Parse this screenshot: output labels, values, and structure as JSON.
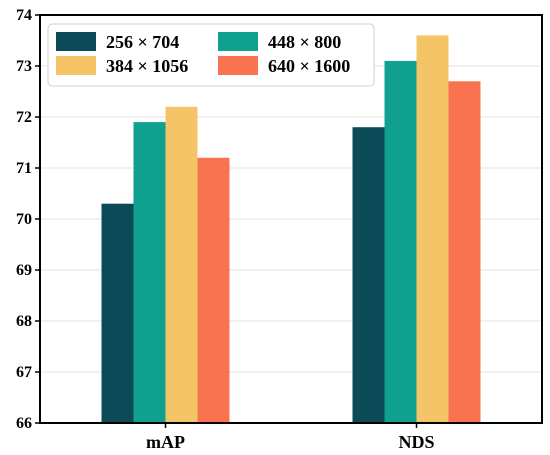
{
  "chart_data": {
    "type": "bar",
    "categories": [
      "mAP",
      "NDS"
    ],
    "series": [
      {
        "name": "256 × 704",
        "values": [
          70.3,
          71.8
        ],
        "color": "#0d4a57"
      },
      {
        "name": "448 × 800",
        "values": [
          71.9,
          73.1
        ],
        "color": "#10a090"
      },
      {
        "name": "384 × 1056",
        "values": [
          72.2,
          73.6
        ],
        "color": "#f5c466"
      },
      {
        "name": "640 × 1600",
        "values": [
          71.2,
          72.7
        ],
        "color": "#fa7350"
      }
    ],
    "legend_order": [
      0,
      1,
      2,
      3
    ],
    "ylim": [
      66,
      74
    ],
    "yticks": [
      66,
      67,
      68,
      69,
      70,
      71,
      72,
      73,
      74
    ],
    "grid": true,
    "legend_position": "top-left",
    "title": "",
    "xlabel": "",
    "ylabel": ""
  }
}
